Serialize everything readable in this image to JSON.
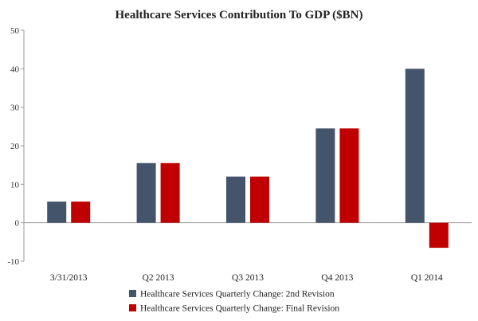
{
  "chart_data": {
    "type": "bar",
    "title": "Healthcare Services Contribution To GDP ($BN)",
    "xlabel": "",
    "ylabel": "",
    "categories": [
      "3/31/2013",
      "Q2 2013",
      "Q3 2013",
      "Q4 2013",
      "Q1 2014"
    ],
    "series": [
      {
        "name": "Healthcare Services Quarterly Change: 2nd Revision",
        "color": "#44546a",
        "values": [
          5.5,
          15.5,
          12,
          24.5,
          40
        ]
      },
      {
        "name": "Healthcare Services Quarterly Change: Final Revision",
        "color": "#c00000",
        "values": [
          5.5,
          15.5,
          12,
          24.5,
          -6.5
        ]
      }
    ],
    "ylim": [
      -10,
      50
    ],
    "yticks": [
      -10,
      0,
      10,
      20,
      30,
      40,
      50
    ],
    "grid": false,
    "legend_position": "bottom"
  }
}
